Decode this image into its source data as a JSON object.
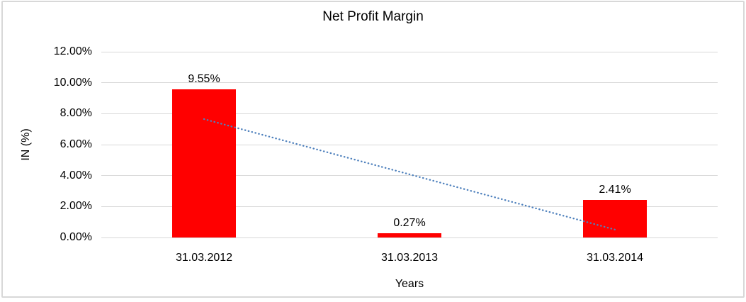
{
  "chart_data": {
    "type": "bar",
    "title": "Net Profit Margin",
    "xlabel": "Years",
    "ylabel": "IN (%)",
    "categories": [
      "31.03.2012",
      "31.03.2013",
      "31.03.2014"
    ],
    "values": [
      9.55,
      0.27,
      2.41
    ],
    "data_labels": [
      "9.55%",
      "0.27%",
      "2.41%"
    ],
    "ylim": [
      0,
      12
    ],
    "ytick_step": 2,
    "ytick_labels": [
      "0.00%",
      "2.00%",
      "4.00%",
      "6.00%",
      "8.00%",
      "10.00%",
      "12.00%"
    ],
    "grid": true,
    "legend": "none",
    "bar_color": "#ff0000",
    "gridline_color": "#d9d9d9",
    "text_color": "#000000",
    "trendline": {
      "type": "linear",
      "style": "dotted",
      "color": "#4f81bd",
      "start_value": 7.65,
      "end_value": 0.51
    }
  }
}
